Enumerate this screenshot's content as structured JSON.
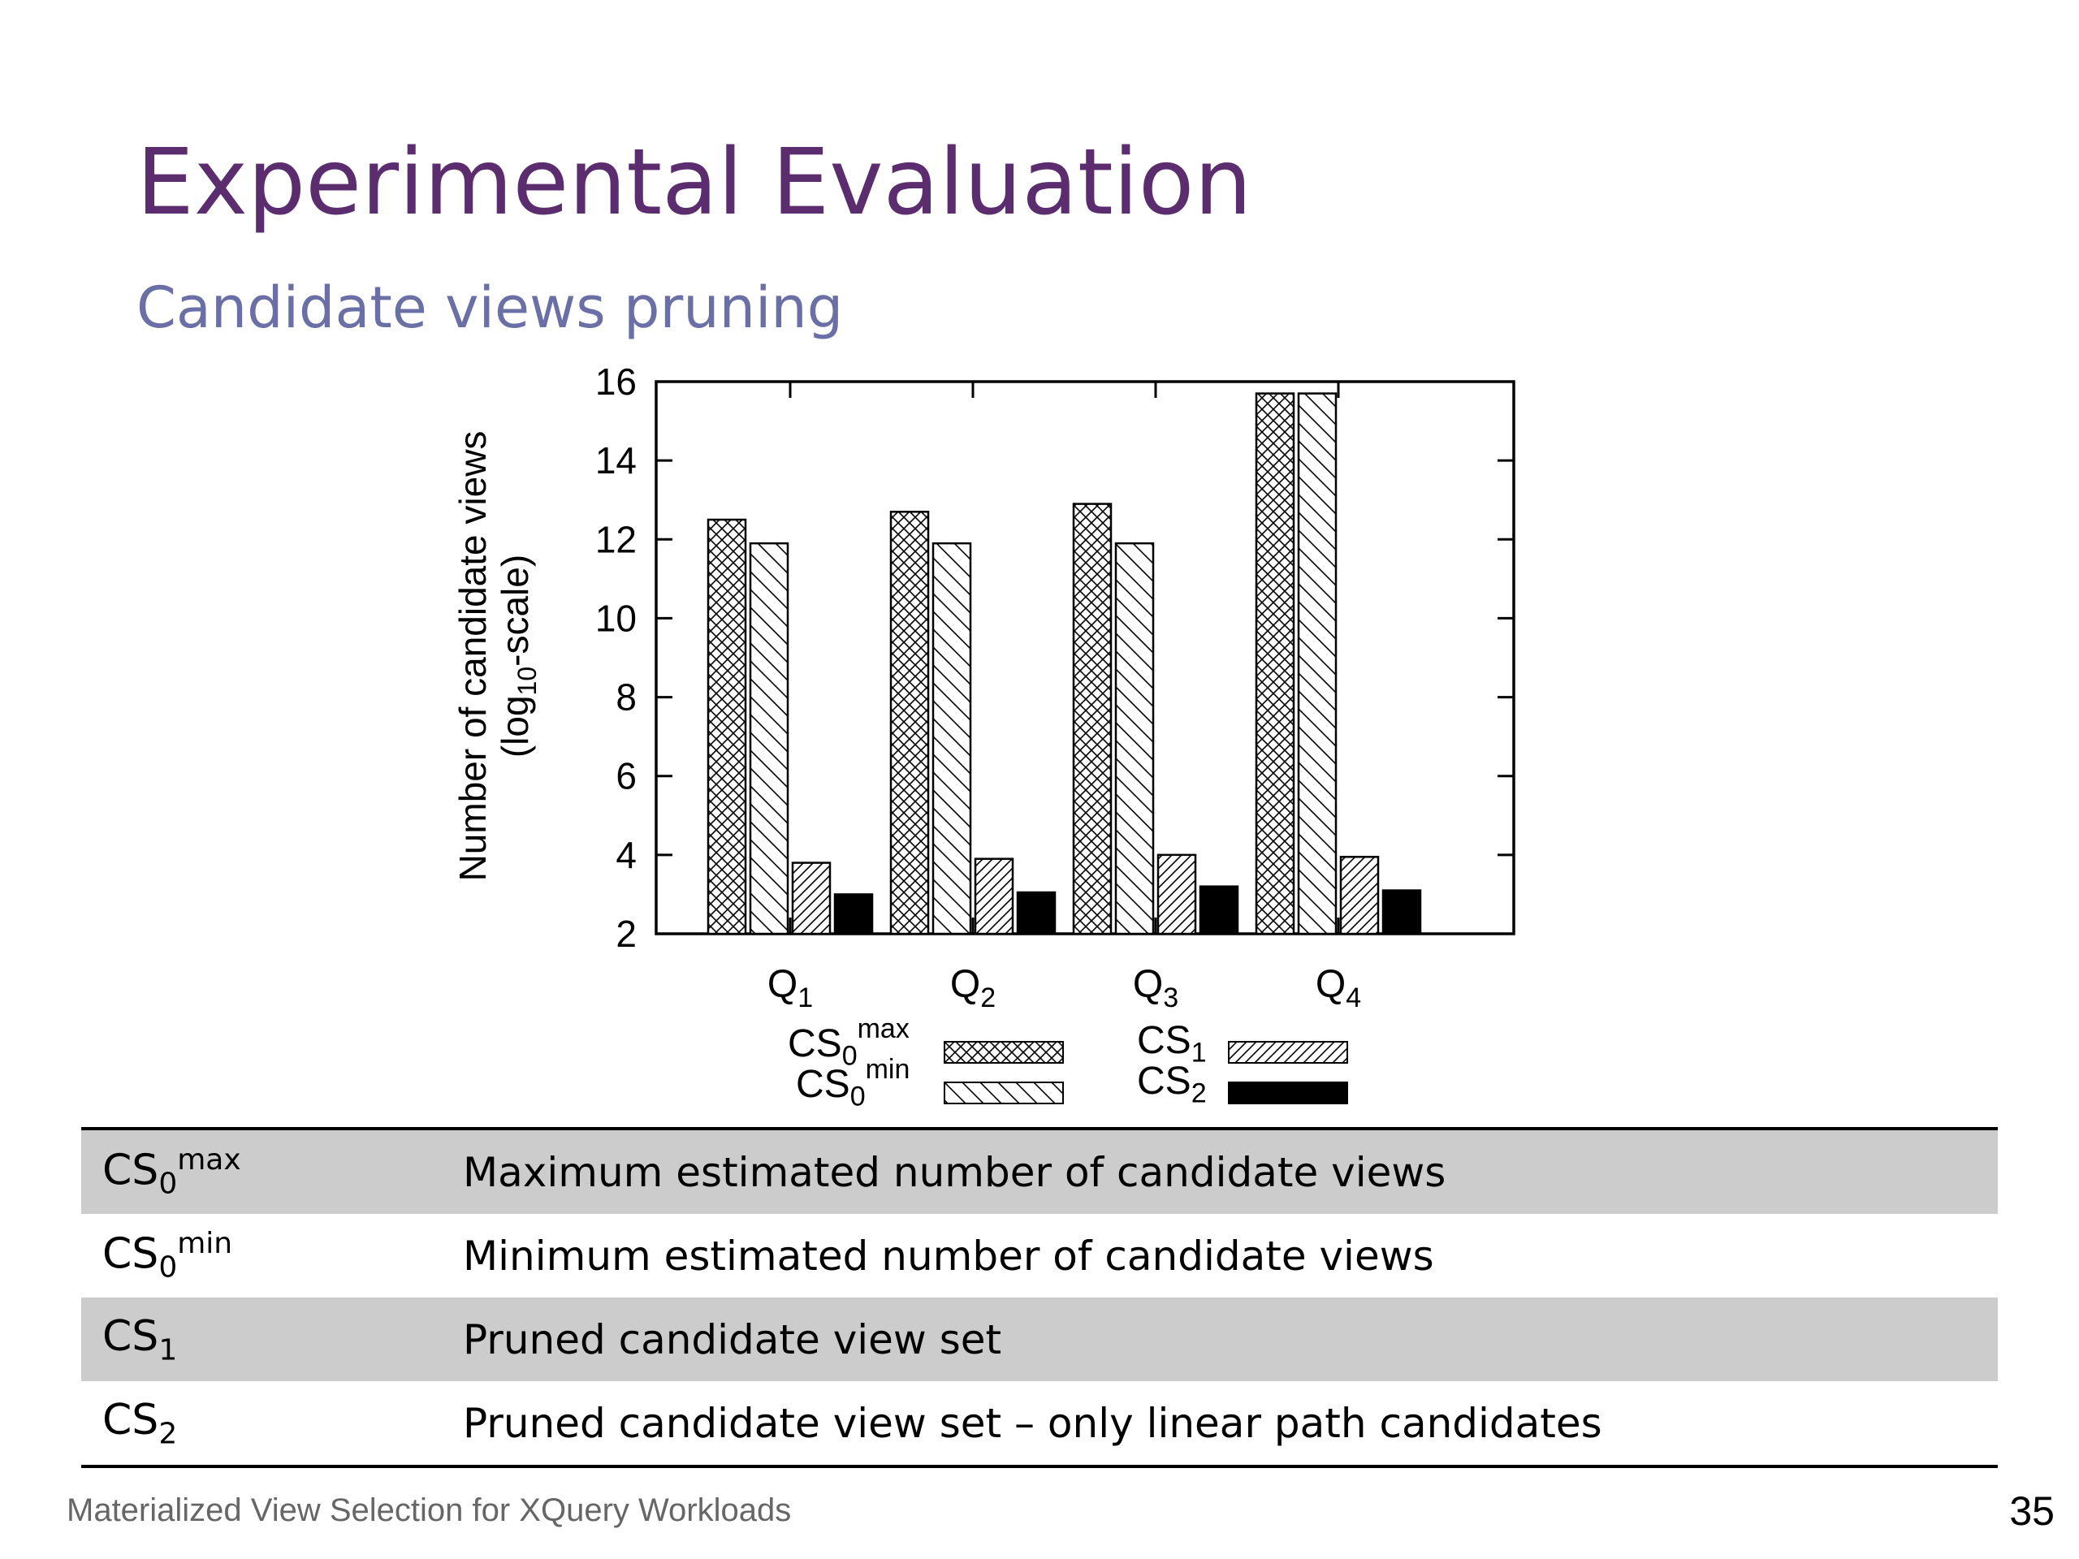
{
  "slide": {
    "title": "Experimental Evaluation",
    "subtitle": "Candidate views pruning",
    "footer": "Materialized View Selection for XQuery Workloads",
    "page_number": "35"
  },
  "chart_data": {
    "type": "bar",
    "ylabel": "Number of candidate views",
    "ylabel2_pre": "(log",
    "ylabel2_sub": "10",
    "ylabel2_post": "-scale)",
    "ylim": [
      2,
      16
    ],
    "yticks": [
      2,
      4,
      6,
      8,
      10,
      12,
      14,
      16
    ],
    "categories": [
      {
        "base": "Q",
        "sub": "1"
      },
      {
        "base": "Q",
        "sub": "2"
      },
      {
        "base": "Q",
        "sub": "3"
      },
      {
        "base": "Q",
        "sub": "4"
      }
    ],
    "series": [
      {
        "name": "CS0max",
        "base": "CS",
        "sub": "0",
        "sup": "max",
        "pattern": "crosshatch",
        "values": [
          12.5,
          12.7,
          12.9,
          15.7
        ]
      },
      {
        "name": "CS0min",
        "base": "CS",
        "sub": "0",
        "sup": "min",
        "pattern": "backslash",
        "values": [
          11.9,
          11.9,
          11.9,
          15.7
        ]
      },
      {
        "name": "CS1",
        "base": "CS",
        "sub": "1",
        "sup": "",
        "pattern": "slash",
        "values": [
          3.8,
          3.9,
          4.0,
          3.95
        ]
      },
      {
        "name": "CS2",
        "base": "CS",
        "sub": "2",
        "sup": "",
        "pattern": "solid",
        "values": [
          3.0,
          3.05,
          3.2,
          3.1
        ]
      }
    ],
    "grid": false,
    "legend_position": "bottom"
  },
  "table": {
    "rows": [
      {
        "sym_base": "CS",
        "sym_sub": "0",
        "sym_sup": "max",
        "desc": "Maximum estimated number of candidate views"
      },
      {
        "sym_base": "CS",
        "sym_sub": "0",
        "sym_sup": "min",
        "desc": "Minimum estimated number of candidate views"
      },
      {
        "sym_base": "CS",
        "sym_sub": "1",
        "sym_sup": "",
        "desc": "Pruned candidate view set"
      },
      {
        "sym_base": "CS",
        "sym_sub": "2",
        "sym_sup": "",
        "desc": "Pruned candidate view set – only linear path candidates"
      }
    ]
  }
}
